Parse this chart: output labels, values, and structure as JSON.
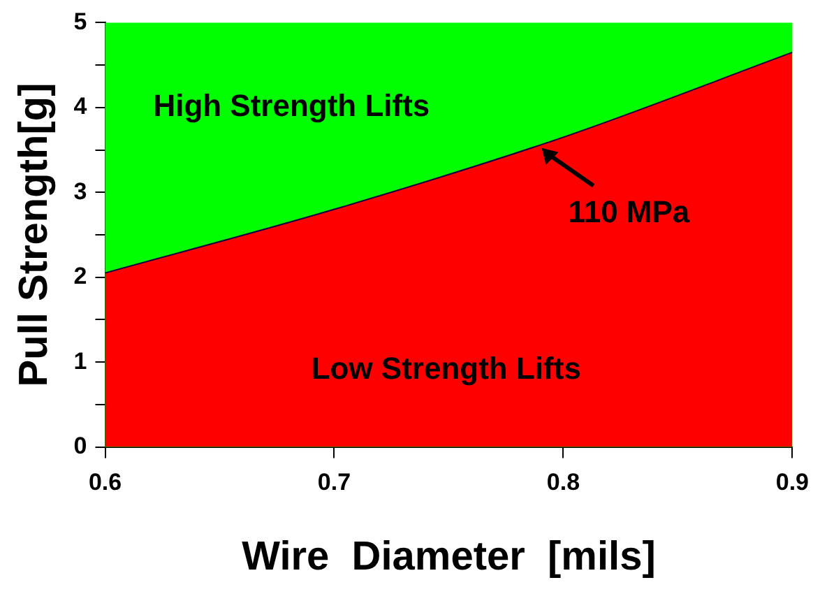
{
  "chart_data": {
    "type": "area",
    "xlabel": "Wire  Diameter  [mils]",
    "ylabel": "Pull Strength[g]",
    "x": [
      0.6,
      0.7,
      0.8,
      0.9
    ],
    "series": [
      {
        "color": "#ff0000",
        "values": [
          2.05,
          2.8,
          3.65,
          4.65
        ]
      }
    ],
    "xlim": [
      0.6,
      0.9
    ],
    "xticks": [
      0.6,
      0.7,
      0.8,
      0.9
    ],
    "ylim": [
      0,
      5
    ],
    "yticks": [
      0,
      {
        "value": 0.5,
        "label": null
      },
      1,
      {
        "value": 1.5,
        "label": null
      },
      2,
      {
        "value": 2.5,
        "label": null
      },
      3,
      {
        "value": 3.5,
        "label": null
      },
      4,
      {
        "value": 4.5,
        "label": null
      },
      5
    ],
    "bands": [
      {
        "axis": "y",
        "from": 0,
        "to": 5,
        "color": "#00ff00"
      }
    ],
    "annotations": [
      "High Strength Lifts",
      "Low Strength Lifts",
      {
        "text": "110 MPa",
        "x": 0.79,
        "y": 3.54
      }
    ],
    "grid": false,
    "legend": false,
    "marker": "none"
  }
}
